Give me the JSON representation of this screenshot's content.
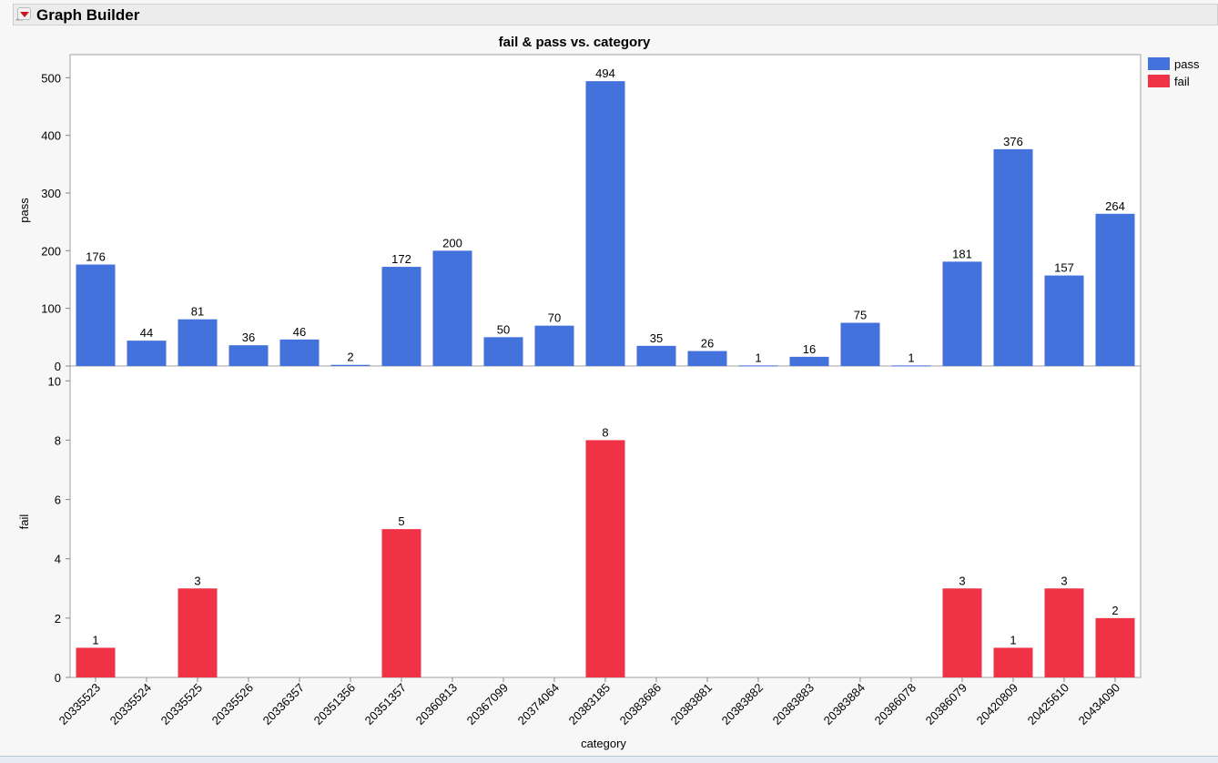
{
  "header": {
    "title": "Graph Builder"
  },
  "chart_data": {
    "type": "bar",
    "title": "fail & pass vs. category",
    "xlabel": "category",
    "categories": [
      "20335523",
      "20335524",
      "20335525",
      "20335526",
      "20336357",
      "20351356",
      "20351357",
      "20360813",
      "20367099",
      "20374064",
      "20383185",
      "20383686",
      "20383881",
      "20383882",
      "20383883",
      "20383884",
      "20386078",
      "20386079",
      "20420809",
      "20425610",
      "20434090"
    ],
    "series": [
      {
        "name": "pass",
        "color": "#4472dc",
        "ylabel": "pass",
        "ylim": [
          0,
          540
        ],
        "ticks": [
          0,
          100,
          200,
          300,
          400,
          500
        ],
        "values": [
          176,
          44,
          81,
          36,
          46,
          2,
          172,
          200,
          50,
          70,
          494,
          35,
          26,
          1,
          16,
          75,
          1,
          181,
          376,
          157,
          264
        ]
      },
      {
        "name": "fail",
        "color": "#f03246",
        "ylabel": "fail",
        "ylim": [
          0,
          10.5
        ],
        "ticks": [
          0,
          2,
          4,
          6,
          8,
          10
        ],
        "values": [
          1,
          null,
          3,
          null,
          null,
          null,
          5,
          null,
          null,
          null,
          8,
          null,
          null,
          null,
          null,
          null,
          null,
          3,
          1,
          3,
          2
        ]
      }
    ],
    "legend": "top-right",
    "grid": false
  }
}
